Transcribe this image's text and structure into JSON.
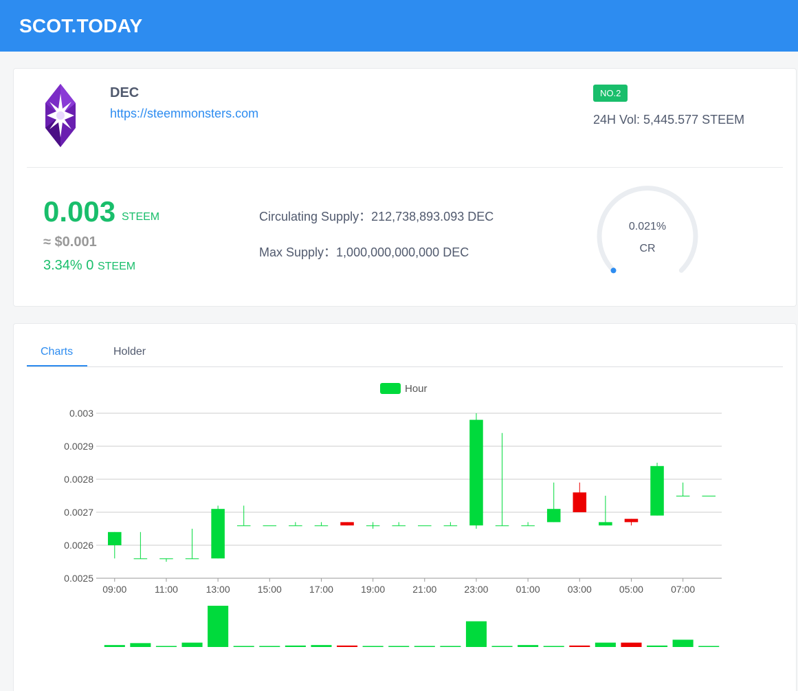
{
  "header": {
    "brand": "SCOT.TODAY"
  },
  "token": {
    "name": "DEC",
    "url": "https://steemmonsters.com",
    "rank_badge": "NO.2",
    "volume_label": "24H Vol: ",
    "volume_value": "5,445.577 STEEM",
    "price": "0.003",
    "price_unit": "STEEM",
    "usd_price": "≈ $0.001",
    "change_pct": "3.34%",
    "change_amount": "0",
    "change_unit": "STEEM",
    "circulating_supply_label": "Circulating Supply：",
    "circulating_supply_value": "212,738,893.093 DEC",
    "max_supply_label": "Max Supply：",
    "max_supply_value": "1,000,000,000,000 DEC",
    "cr_value": "0.021%",
    "cr_fraction": 0.00021,
    "cr_label": "CR"
  },
  "tabs": [
    {
      "label": "Charts",
      "active": true
    },
    {
      "label": "Holder",
      "active": false
    }
  ],
  "colors": {
    "brand_blue": "#2d8cf0",
    "up_green": "#00da3c",
    "down_red": "#ec0000",
    "price_green": "#19be6b"
  },
  "chart_data": {
    "type": "candlestick",
    "legend": [
      "Hour"
    ],
    "legend_position": "top-center",
    "ylim": [
      0.0025,
      0.003
    ],
    "y_ticks": [
      "0.003",
      "0.0029",
      "0.0028",
      "0.0027",
      "0.0026",
      "0.0025"
    ],
    "x_ticks": [
      "09:00",
      "11:00",
      "13:00",
      "15:00",
      "17:00",
      "19:00",
      "21:00",
      "23:00",
      "01:00",
      "03:00",
      "05:00",
      "07:00"
    ],
    "grid": true,
    "candles": [
      {
        "time": "09:00",
        "open": 0.0026,
        "close": 0.00264,
        "low": 0.00256,
        "high": 0.00264,
        "volume": 4
      },
      {
        "time": "10:00",
        "open": 0.00256,
        "close": 0.00256,
        "low": 0.00256,
        "high": 0.00264,
        "volume": 8
      },
      {
        "time": "11:00",
        "open": 0.00256,
        "close": 0.00256,
        "low": 0.00255,
        "high": 0.00256,
        "volume": 2
      },
      {
        "time": "12:00",
        "open": 0.00256,
        "close": 0.00256,
        "low": 0.00256,
        "high": 0.00265,
        "volume": 9
      },
      {
        "time": "13:00",
        "open": 0.00256,
        "close": 0.00271,
        "low": 0.00256,
        "high": 0.00272,
        "volume": 85
      },
      {
        "time": "14:00",
        "open": 0.00266,
        "close": 0.00266,
        "low": 0.00266,
        "high": 0.00272,
        "volume": 2
      },
      {
        "time": "15:00",
        "open": 0.00266,
        "close": 0.00266,
        "low": 0.00266,
        "high": 0.00266,
        "volume": 1
      },
      {
        "time": "16:00",
        "open": 0.00266,
        "close": 0.00266,
        "low": 0.00266,
        "high": 0.00267,
        "volume": 3
      },
      {
        "time": "17:00",
        "open": 0.00266,
        "close": 0.00266,
        "low": 0.00266,
        "high": 0.00267,
        "volume": 4
      },
      {
        "time": "18:00",
        "open": 0.00267,
        "close": 0.00266,
        "low": 0.00266,
        "high": 0.00267,
        "volume": 3
      },
      {
        "time": "19:00",
        "open": 0.00266,
        "close": 0.00266,
        "low": 0.00265,
        "high": 0.00267,
        "volume": 2
      },
      {
        "time": "20:00",
        "open": 0.00266,
        "close": 0.00266,
        "low": 0.00266,
        "high": 0.00267,
        "volume": 2
      },
      {
        "time": "21:00",
        "open": 0.00266,
        "close": 0.00266,
        "low": 0.00266,
        "high": 0.00266,
        "volume": 1
      },
      {
        "time": "22:00",
        "open": 0.00266,
        "close": 0.00266,
        "low": 0.00266,
        "high": 0.00267,
        "volume": 2
      },
      {
        "time": "23:00",
        "open": 0.00266,
        "close": 0.00298,
        "low": 0.00265,
        "high": 0.003,
        "volume": 53
      },
      {
        "time": "00:00",
        "open": 0.00266,
        "close": 0.00266,
        "low": 0.00266,
        "high": 0.00294,
        "volume": 1
      },
      {
        "time": "01:00",
        "open": 0.00266,
        "close": 0.00266,
        "low": 0.00266,
        "high": 0.00267,
        "volume": 4
      },
      {
        "time": "02:00",
        "open": 0.00267,
        "close": 0.00271,
        "low": 0.00267,
        "high": 0.00279,
        "volume": 1
      },
      {
        "time": "03:00",
        "open": 0.00276,
        "close": 0.0027,
        "low": 0.0027,
        "high": 0.00279,
        "volume": 3
      },
      {
        "time": "04:00",
        "open": 0.00266,
        "close": 0.00267,
        "low": 0.00266,
        "high": 0.00275,
        "volume": 9
      },
      {
        "time": "05:00",
        "open": 0.00268,
        "close": 0.00267,
        "low": 0.00266,
        "high": 0.00268,
        "volume": 9
      },
      {
        "time": "06:00",
        "open": 0.00269,
        "close": 0.00284,
        "low": 0.00269,
        "high": 0.00285,
        "volume": 3
      },
      {
        "time": "07:00",
        "open": 0.00275,
        "close": 0.00275,
        "low": 0.00275,
        "high": 0.00279,
        "volume": 15
      },
      {
        "time": "08:00",
        "open": 0.00275,
        "close": 0.00275,
        "low": 0.00275,
        "high": 0.00275,
        "volume": 2
      }
    ]
  }
}
